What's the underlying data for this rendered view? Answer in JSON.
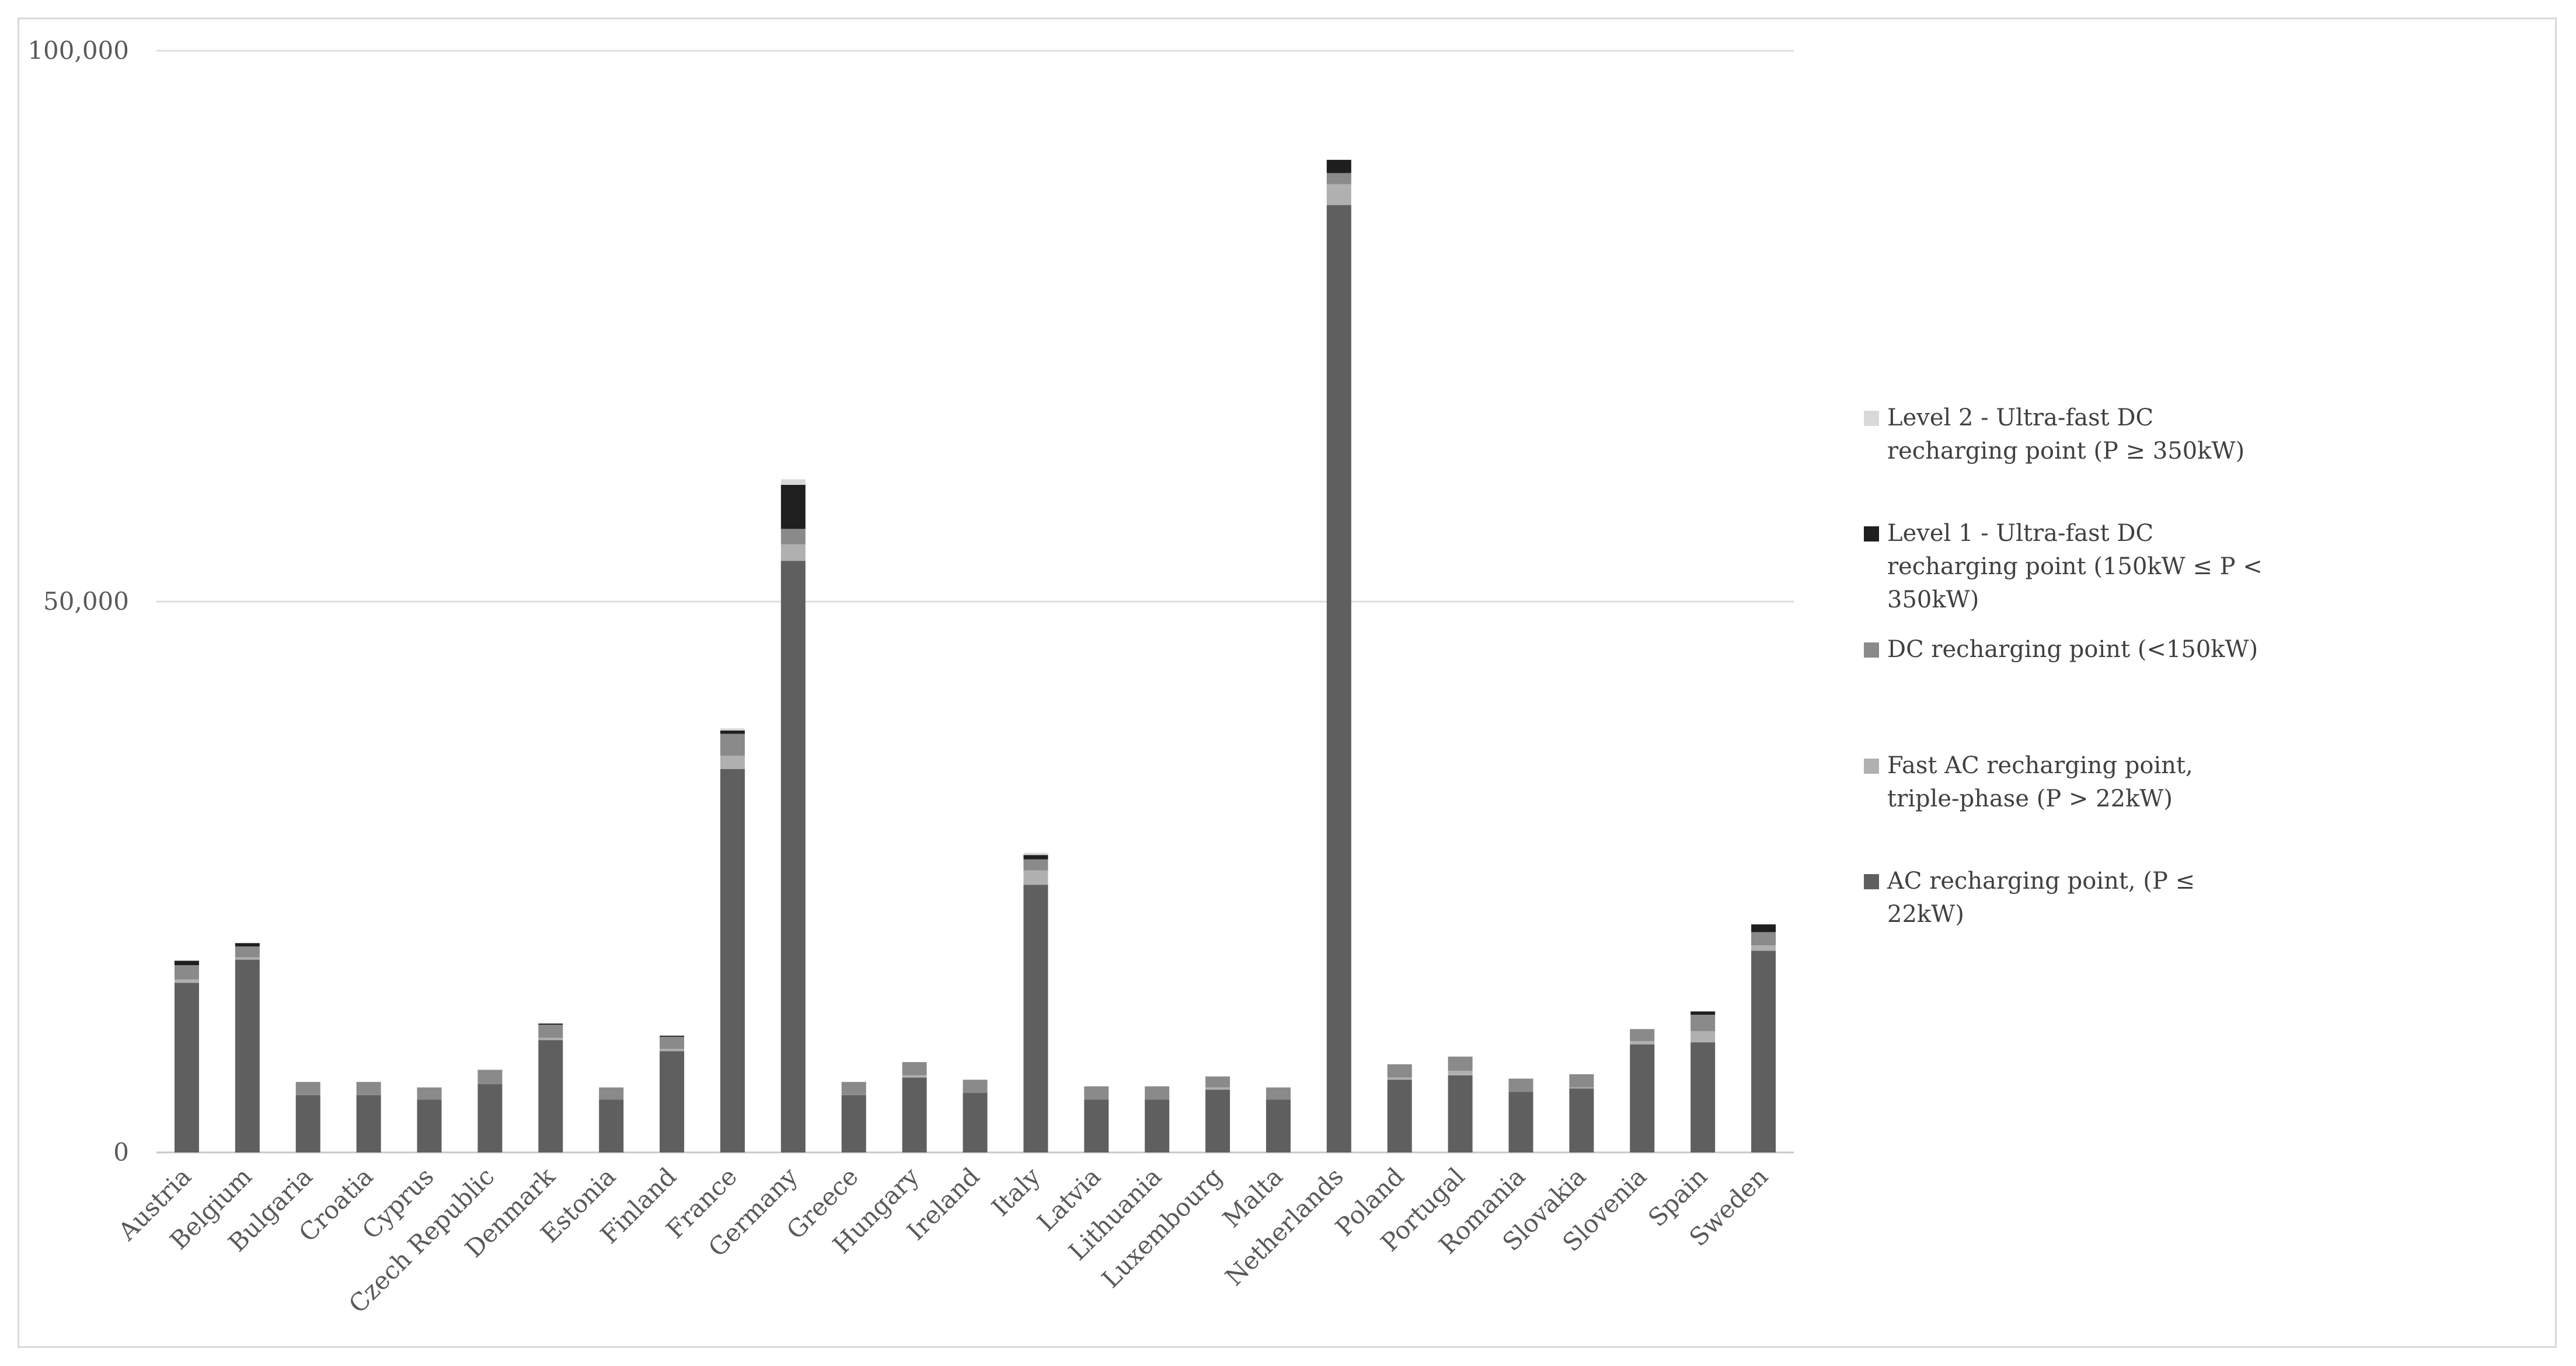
{
  "chart_data": {
    "type": "bar",
    "stacked": true,
    "categories": [
      "Austria",
      "Belgium",
      "Bulgaria",
      "Croatia",
      "Cyprus",
      "Czech Republic",
      "Denmark",
      "Estonia",
      "Finland",
      "France",
      "Germany",
      "Greece",
      "Hungary",
      "Ireland",
      "Italy",
      "Latvia",
      "Lithuania",
      "Luxembourg",
      "Malta",
      "Netherlands",
      "Poland",
      "Portugal",
      "Romania",
      "Slovakia",
      "Slovenia",
      "Spain",
      "Sweden"
    ],
    "series": [
      {
        "name": "AC recharging point, (P ≤ 22kW)",
        "color": "#5f5f5f",
        "values": [
          15400,
          17500,
          5200,
          5200,
          4800,
          6200,
          10200,
          4800,
          9200,
          34800,
          53700,
          5200,
          6800,
          5400,
          24300,
          4800,
          4800,
          5700,
          4800,
          86000,
          6600,
          7000,
          5500,
          5800,
          9800,
          10000,
          18300
        ]
      },
      {
        "name": "Fast AC recharging point, triple-phase (P > 22kW)",
        "color": "#b0b0b0",
        "values": [
          300,
          200,
          0,
          0,
          0,
          0,
          200,
          0,
          200,
          1200,
          1500,
          0,
          200,
          0,
          1300,
          0,
          0,
          200,
          0,
          1900,
          200,
          400,
          0,
          100,
          300,
          1000,
          500
        ]
      },
      {
        "name": "DC recharging point (<150kW)",
        "color": "#8a8a8a",
        "values": [
          1300,
          1000,
          1200,
          1200,
          1100,
          1300,
          1200,
          1100,
          1100,
          2000,
          1400,
          1200,
          1200,
          1200,
          1000,
          1200,
          1200,
          1000,
          1100,
          1000,
          1200,
          1300,
          1200,
          1200,
          1100,
          1500,
          1200
        ]
      },
      {
        "name": "Level 1 - Ultra-fast DC recharging point (150kW ≤ P < 350kW)",
        "color": "#1f1f1f",
        "values": [
          400,
          300,
          0,
          0,
          0,
          0,
          100,
          0,
          100,
          300,
          4000,
          0,
          0,
          0,
          400,
          0,
          0,
          0,
          0,
          1200,
          0,
          0,
          0,
          0,
          0,
          300,
          700
        ]
      },
      {
        "name": "Level 2 - Ultra-fast DC recharging point (P ≥ 350kW)",
        "color": "#d9d9d9",
        "values": [
          0,
          0,
          0,
          0,
          0,
          0,
          0,
          0,
          0,
          200,
          500,
          0,
          0,
          0,
          200,
          0,
          0,
          0,
          0,
          0,
          0,
          0,
          0,
          0,
          0,
          0,
          0
        ]
      }
    ],
    "ylim": [
      0,
      100000
    ],
    "yticks": [
      0,
      50000,
      100000
    ],
    "ytick_labels": [
      "0",
      "50,000",
      "100,000"
    ],
    "grid": true,
    "legend_position": "right"
  },
  "legend": {
    "items": [
      {
        "label": "Level 2 - Ultra-fast DC recharging point (P ≥ 350kW)",
        "color": "#d9d9d9"
      },
      {
        "label": "Level 1 - Ultra-fast DC recharging point (150kW ≤ P < 350kW)",
        "color": "#1f1f1f"
      },
      {
        "label": "DC recharging point (<150kW)",
        "color": "#8a8a8a"
      },
      {
        "label": "Fast AC recharging point, triple-phase (P > 22kW)",
        "color": "#b0b0b0"
      },
      {
        "label": "AC recharging point, (P ≤ 22kW)",
        "color": "#5f5f5f"
      }
    ]
  }
}
